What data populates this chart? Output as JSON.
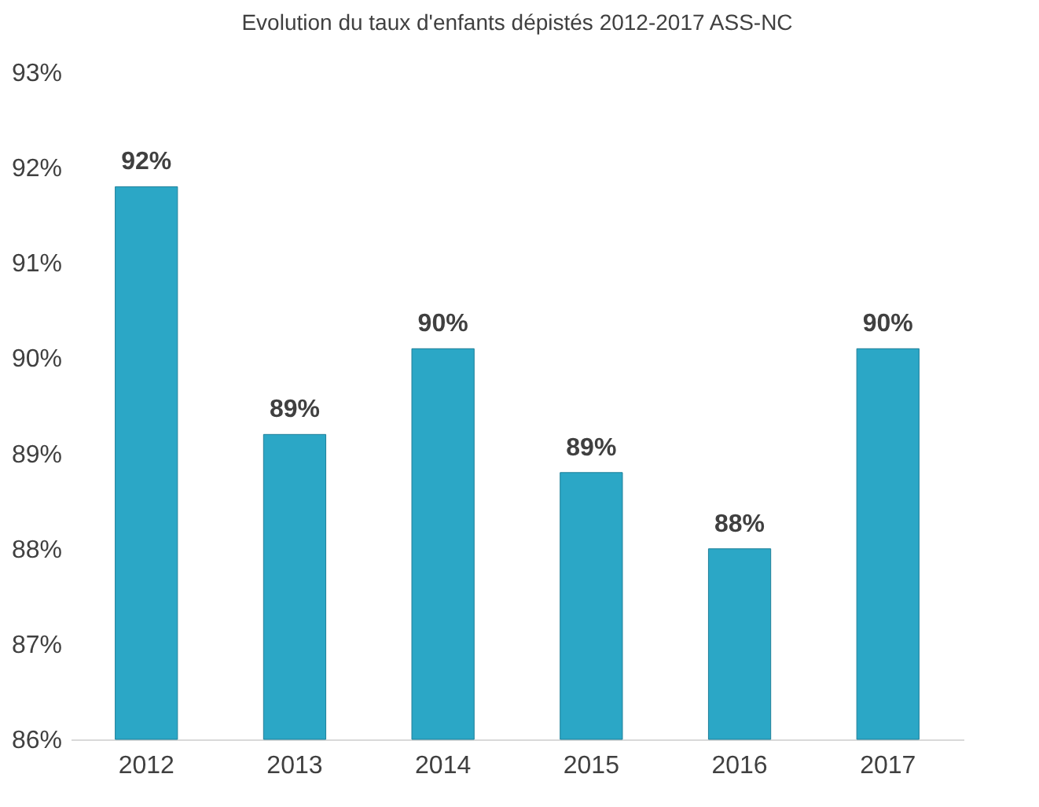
{
  "chart_data": {
    "type": "bar",
    "title": "Evolution du taux d'enfants dépistés 2012-2017 ASS-NC",
    "categories": [
      "2012",
      "2013",
      "2014",
      "2015",
      "2016",
      "2017"
    ],
    "values": [
      91.8,
      89.2,
      90.1,
      88.8,
      88.0,
      90.1
    ],
    "value_labels": [
      "92%",
      "89%",
      "90%",
      "89%",
      "88%",
      "90%"
    ],
    "color": "#2ba7c6",
    "ylim": [
      86,
      93
    ],
    "yticks": [
      {
        "value": 86,
        "label": "86%"
      },
      {
        "value": 87,
        "label": "87%"
      },
      {
        "value": 88,
        "label": "88%"
      },
      {
        "value": 89,
        "label": "89%"
      },
      {
        "value": 90,
        "label": "90%"
      },
      {
        "value": 91,
        "label": "91%"
      },
      {
        "value": 92,
        "label": "92%"
      },
      {
        "value": 93,
        "label": "93%"
      }
    ],
    "grid": false
  }
}
